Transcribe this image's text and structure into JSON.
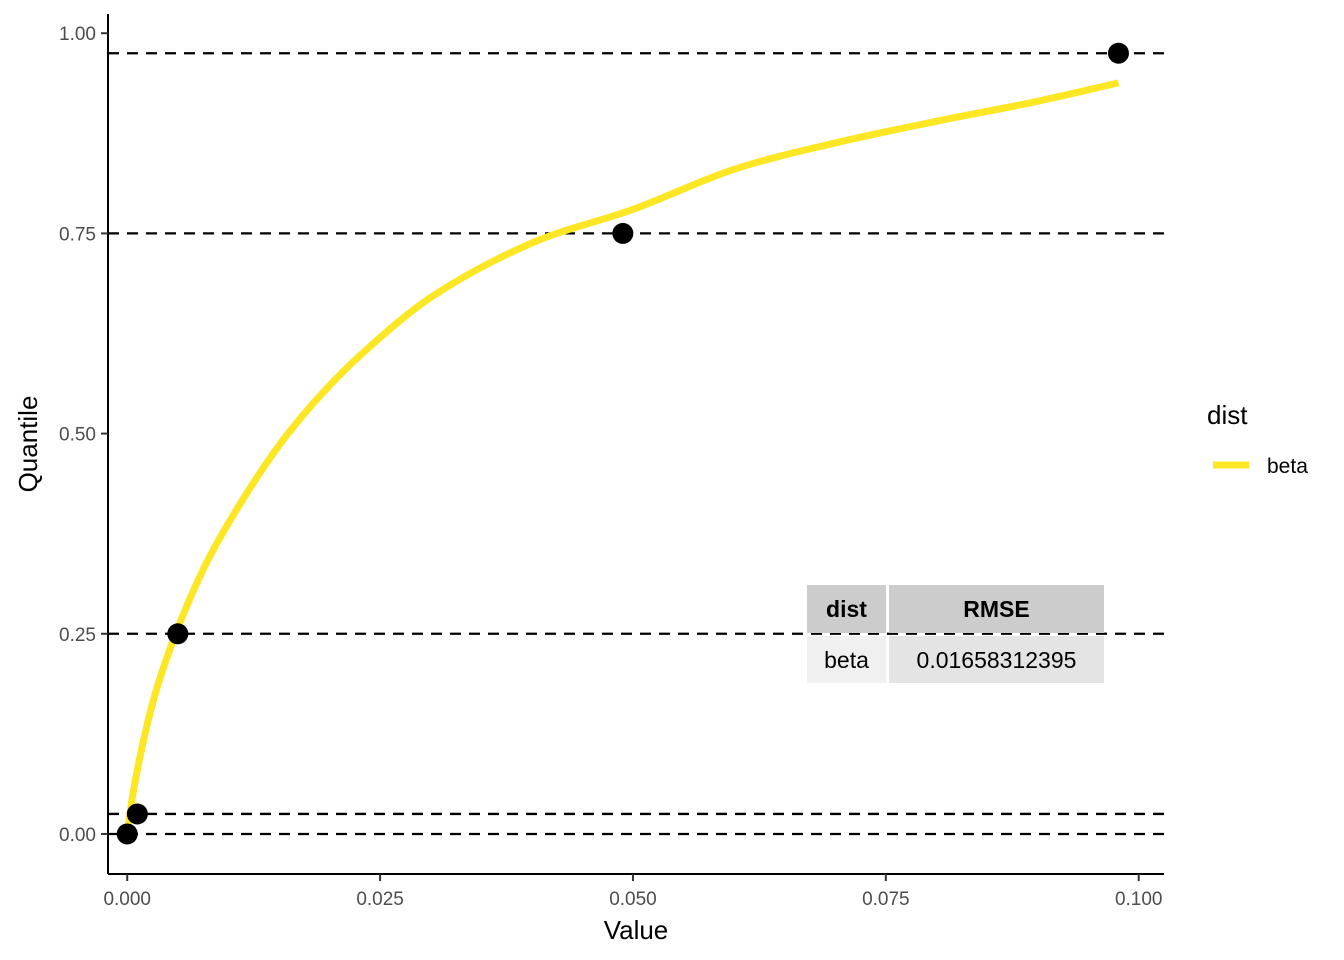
{
  "chart_data": {
    "type": "line",
    "xlabel": "Value",
    "ylabel": "Quantile",
    "xlim": [
      -0.0019,
      0.1025
    ],
    "ylim": [
      -0.05,
      1.024
    ],
    "x_ticks": [
      0.0,
      0.025,
      0.05,
      0.075,
      0.1
    ],
    "x_tick_labels": [
      "0.000",
      "0.025",
      "0.050",
      "0.075",
      "0.100"
    ],
    "y_ticks": [
      0.0,
      0.25,
      0.5,
      0.75,
      1.0
    ],
    "y_tick_labels": [
      "0.00",
      "0.25",
      "0.50",
      "0.75",
      "1.00"
    ],
    "grid": false,
    "reference_lines": [
      0.0,
      0.025,
      0.25,
      0.75,
      0.975
    ],
    "points": [
      {
        "x": 0.0,
        "y": 0.0
      },
      {
        "x": 0.001,
        "y": 0.025
      },
      {
        "x": 0.005,
        "y": 0.25
      },
      {
        "x": 0.049,
        "y": 0.75
      },
      {
        "x": 0.098,
        "y": 0.975
      }
    ],
    "series": [
      {
        "name": "beta",
        "color": "#FDE725",
        "x": [
          0.0,
          0.0005,
          0.001,
          0.002,
          0.003,
          0.005,
          0.0075,
          0.01,
          0.015,
          0.02,
          0.025,
          0.03,
          0.04,
          0.05,
          0.06,
          0.07,
          0.08,
          0.09,
          0.098
        ],
        "y": [
          0.0,
          0.045,
          0.08,
          0.138,
          0.185,
          0.257,
          0.33,
          0.388,
          0.485,
          0.56,
          0.62,
          0.67,
          0.738,
          0.78,
          0.83,
          0.863,
          0.89,
          0.915,
          0.938
        ]
      }
    ],
    "legend": {
      "title": "dist",
      "position": "right",
      "entries": [
        "beta"
      ]
    },
    "table": {
      "headers": [
        "dist",
        "RMSE"
      ],
      "rows": [
        [
          "beta",
          "0.01658312395"
        ]
      ]
    }
  },
  "colors": {
    "line": "#FDE725",
    "points": "#000000",
    "reference_line": "#000000",
    "table_header_bg": "#CCCCCC",
    "table_row_bg_1": "#F0F0F0",
    "table_row_bg_2": "#E4E4E4"
  }
}
